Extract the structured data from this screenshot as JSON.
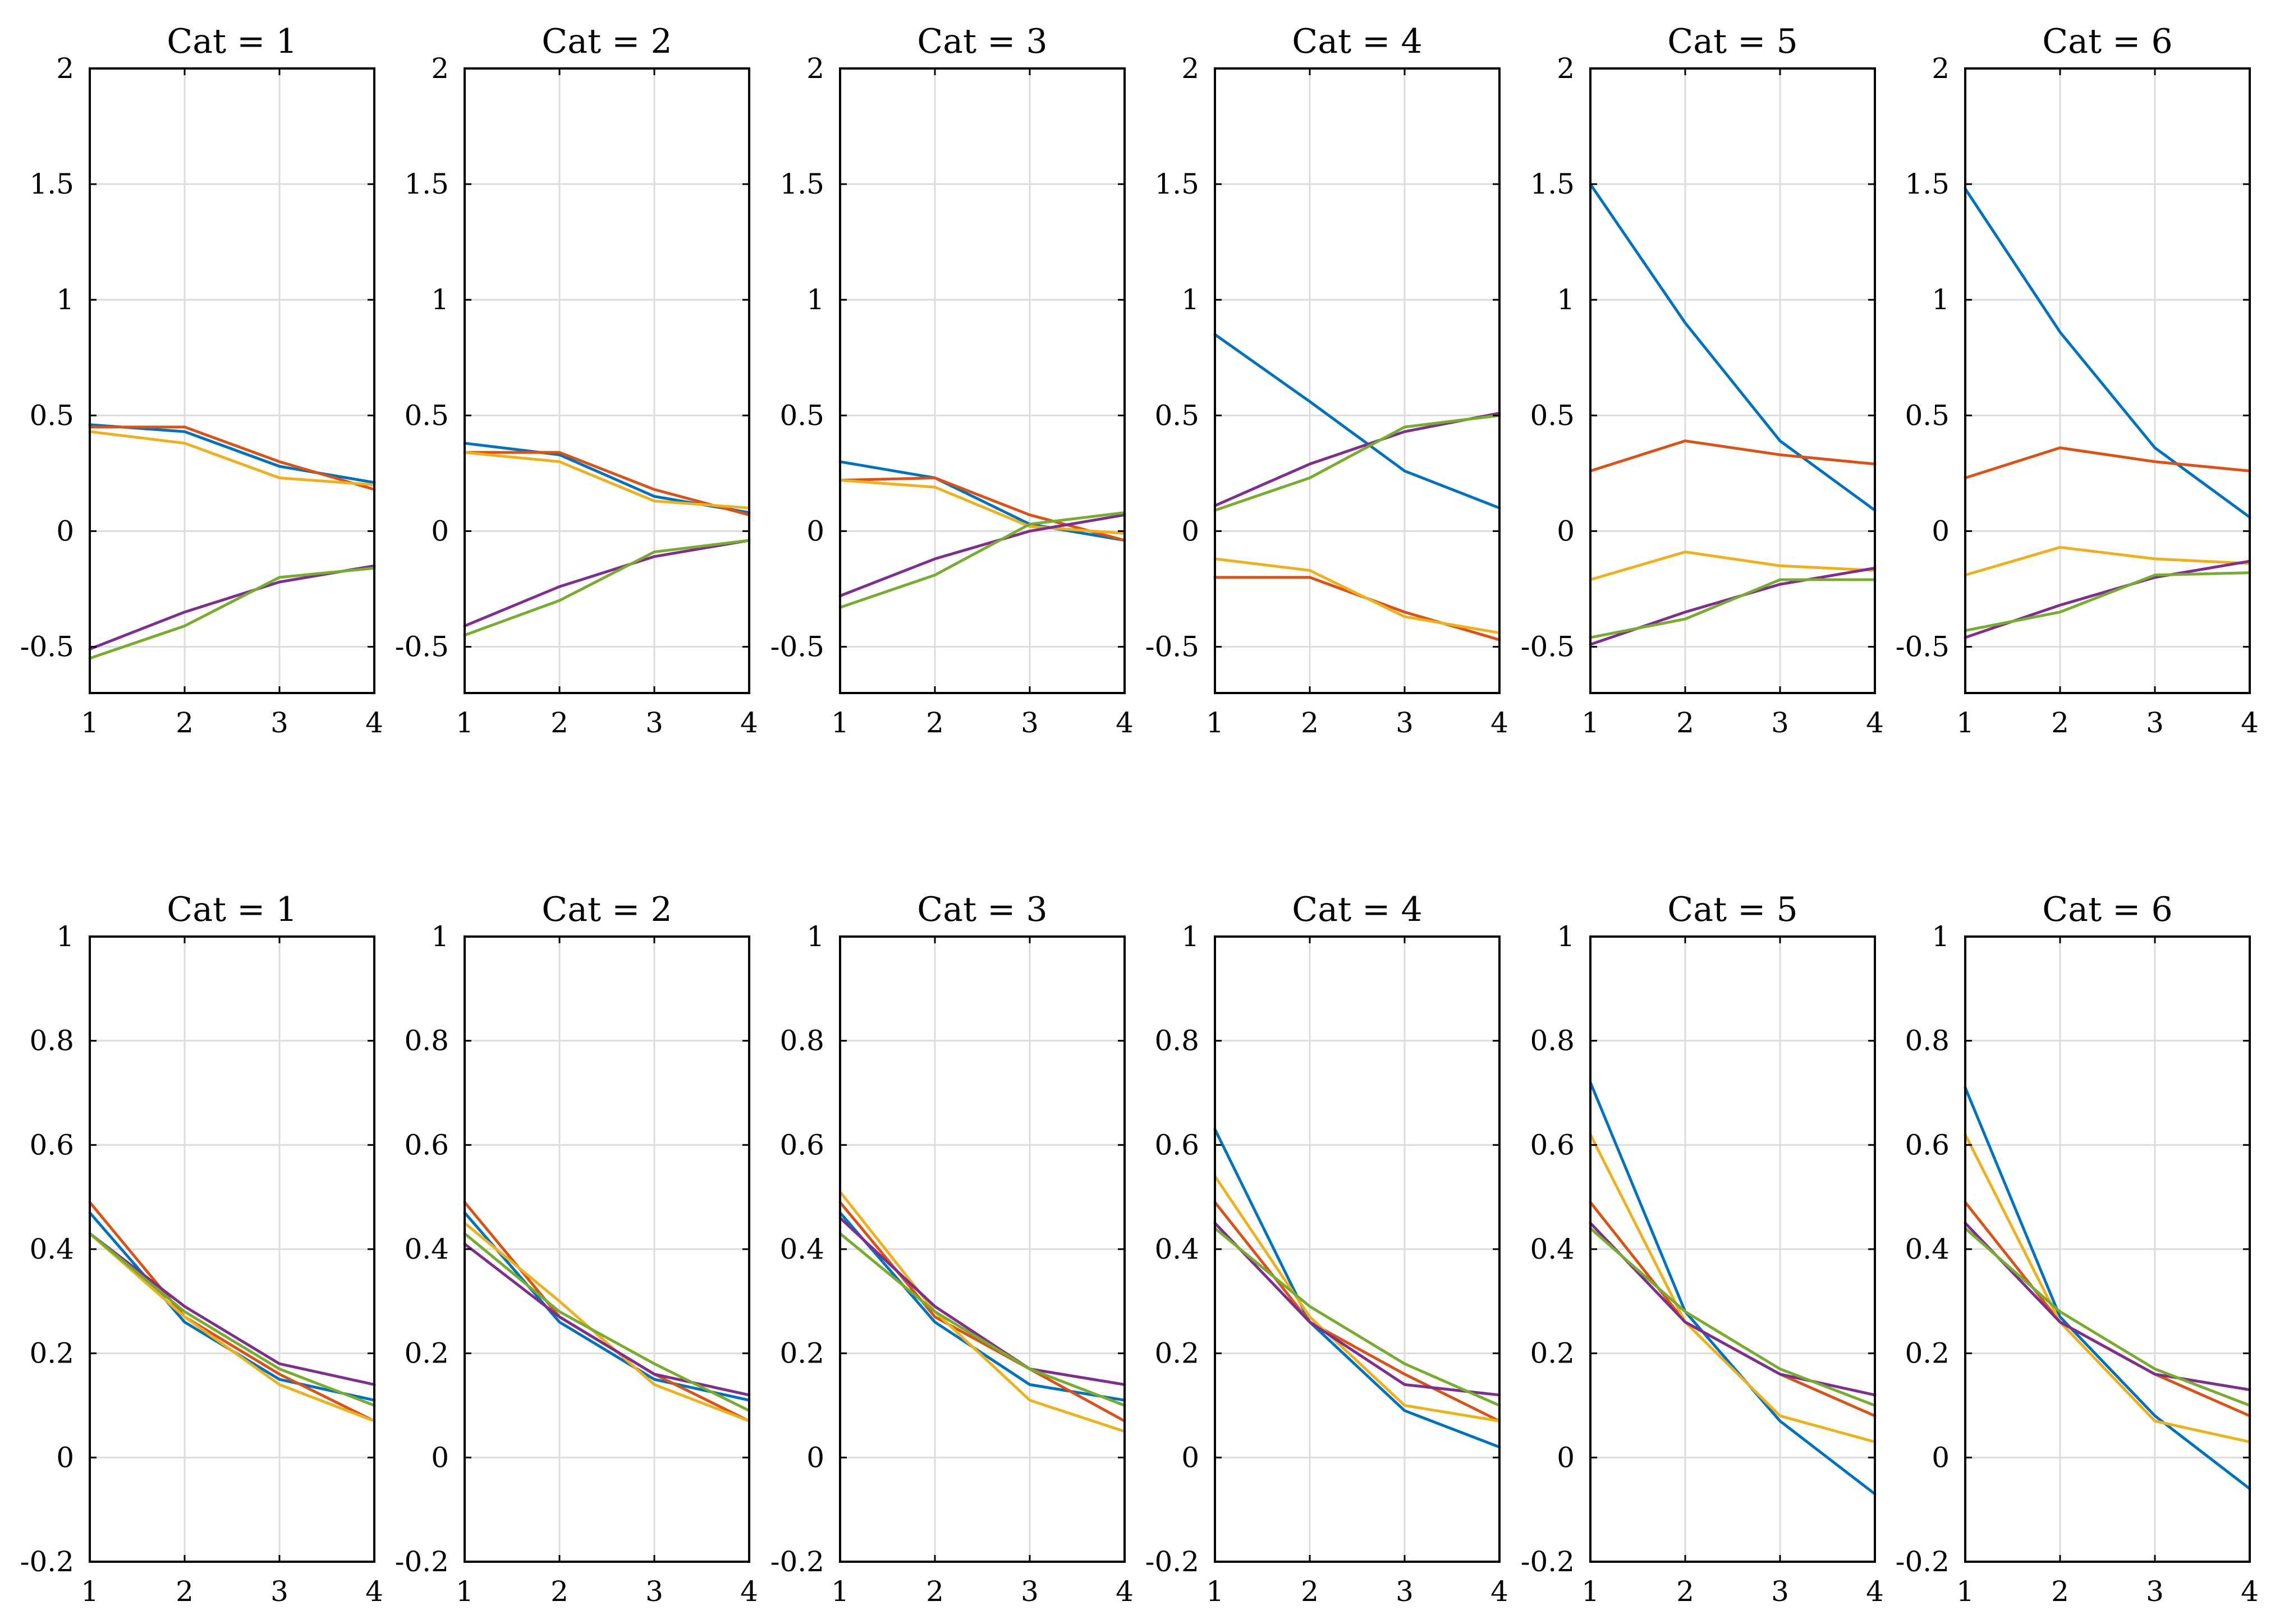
{
  "series_colors": [
    "#0072BD",
    "#D95319",
    "#EDB120",
    "#7E2F8E",
    "#77AC30"
  ],
  "chart_data": [
    {
      "type": "line",
      "title": "Cat = 1",
      "x": [
        1,
        2,
        3,
        4
      ],
      "xlim": [
        1,
        4
      ],
      "ylim": [
        -0.7,
        2
      ],
      "xticks": [
        "1",
        "2",
        "3",
        "4"
      ],
      "yticks": [
        -0.5,
        0,
        0.5,
        1,
        1.5,
        2
      ],
      "ytick_labels": [
        "-0.5",
        "0",
        "0.5",
        "1",
        "1.5",
        "2"
      ],
      "grid": true,
      "series": [
        {
          "values": [
            0.46,
            0.43,
            0.28,
            0.21
          ]
        },
        {
          "values": [
            0.45,
            0.45,
            0.3,
            0.18
          ]
        },
        {
          "values": [
            0.43,
            0.38,
            0.23,
            0.2
          ]
        },
        {
          "values": [
            -0.51,
            -0.35,
            -0.22,
            -0.15
          ]
        },
        {
          "values": [
            -0.55,
            -0.41,
            -0.2,
            -0.16
          ]
        }
      ]
    },
    {
      "type": "line",
      "title": "Cat = 2",
      "x": [
        1,
        2,
        3,
        4
      ],
      "xlim": [
        1,
        4
      ],
      "ylim": [
        -0.7,
        2
      ],
      "xticks": [
        "1",
        "2",
        "3",
        "4"
      ],
      "yticks": [
        -0.5,
        0,
        0.5,
        1,
        1.5,
        2
      ],
      "ytick_labels": [
        "-0.5",
        "0",
        "0.5",
        "1",
        "1.5",
        "2"
      ],
      "grid": true,
      "series": [
        {
          "values": [
            0.38,
            0.33,
            0.15,
            0.08
          ]
        },
        {
          "values": [
            0.34,
            0.34,
            0.18,
            0.07
          ]
        },
        {
          "values": [
            0.34,
            0.3,
            0.13,
            0.1
          ]
        },
        {
          "values": [
            -0.41,
            -0.24,
            -0.11,
            -0.04
          ]
        },
        {
          "values": [
            -0.45,
            -0.3,
            -0.09,
            -0.04
          ]
        }
      ]
    },
    {
      "type": "line",
      "title": "Cat = 3",
      "x": [
        1,
        2,
        3,
        4
      ],
      "xlim": [
        1,
        4
      ],
      "ylim": [
        -0.7,
        2
      ],
      "xticks": [
        "1",
        "2",
        "3",
        "4"
      ],
      "yticks": [
        -0.5,
        0,
        0.5,
        1,
        1.5,
        2
      ],
      "ytick_labels": [
        "-0.5",
        "0",
        "0.5",
        "1",
        "1.5",
        "2"
      ],
      "grid": true,
      "series": [
        {
          "values": [
            0.3,
            0.23,
            0.03,
            -0.04
          ]
        },
        {
          "values": [
            0.22,
            0.23,
            0.07,
            -0.04
          ]
        },
        {
          "values": [
            0.22,
            0.19,
            0.02,
            -0.01
          ]
        },
        {
          "values": [
            -0.28,
            -0.12,
            0.0,
            0.07
          ]
        },
        {
          "values": [
            -0.33,
            -0.19,
            0.03,
            0.08
          ]
        }
      ]
    },
    {
      "type": "line",
      "title": "Cat = 4",
      "x": [
        1,
        2,
        3,
        4
      ],
      "xlim": [
        1,
        4
      ],
      "ylim": [
        -0.7,
        2
      ],
      "xticks": [
        "1",
        "2",
        "3",
        "4"
      ],
      "yticks": [
        -0.5,
        0,
        0.5,
        1,
        1.5,
        2
      ],
      "ytick_labels": [
        "-0.5",
        "0",
        "0.5",
        "1",
        "1.5",
        "2"
      ],
      "grid": true,
      "series": [
        {
          "values": [
            0.85,
            0.56,
            0.26,
            0.1
          ]
        },
        {
          "values": [
            -0.2,
            -0.2,
            -0.35,
            -0.47
          ]
        },
        {
          "values": [
            -0.12,
            -0.17,
            -0.37,
            -0.44
          ]
        },
        {
          "values": [
            0.11,
            0.29,
            0.43,
            0.51
          ]
        },
        {
          "values": [
            0.09,
            0.23,
            0.45,
            0.5
          ]
        }
      ]
    },
    {
      "type": "line",
      "title": "Cat = 5",
      "x": [
        1,
        2,
        3,
        4
      ],
      "xlim": [
        1,
        4
      ],
      "ylim": [
        -0.7,
        2
      ],
      "xticks": [
        "1",
        "2",
        "3",
        "4"
      ],
      "yticks": [
        -0.5,
        0,
        0.5,
        1,
        1.5,
        2
      ],
      "ytick_labels": [
        "-0.5",
        "0",
        "0.5",
        "1",
        "1.5",
        "2"
      ],
      "grid": true,
      "series": [
        {
          "values": [
            1.5,
            0.9,
            0.39,
            0.09
          ]
        },
        {
          "values": [
            0.26,
            0.39,
            0.33,
            0.29
          ]
        },
        {
          "values": [
            -0.21,
            -0.09,
            -0.15,
            -0.17
          ]
        },
        {
          "values": [
            -0.49,
            -0.35,
            -0.23,
            -0.16
          ]
        },
        {
          "values": [
            -0.46,
            -0.38,
            -0.21,
            -0.21
          ]
        }
      ]
    },
    {
      "type": "line",
      "title": "Cat = 6",
      "x": [
        1,
        2,
        3,
        4
      ],
      "xlim": [
        1,
        4
      ],
      "ylim": [
        -0.7,
        2
      ],
      "xticks": [
        "1",
        "2",
        "3",
        "4"
      ],
      "yticks": [
        -0.5,
        0,
        0.5,
        1,
        1.5,
        2
      ],
      "ytick_labels": [
        "-0.5",
        "0",
        "0.5",
        "1",
        "1.5",
        "2"
      ],
      "grid": true,
      "series": [
        {
          "values": [
            1.48,
            0.86,
            0.36,
            0.06
          ]
        },
        {
          "values": [
            0.23,
            0.36,
            0.3,
            0.26
          ]
        },
        {
          "values": [
            -0.19,
            -0.07,
            -0.12,
            -0.14
          ]
        },
        {
          "values": [
            -0.46,
            -0.32,
            -0.2,
            -0.13
          ]
        },
        {
          "values": [
            -0.43,
            -0.35,
            -0.19,
            -0.18
          ]
        }
      ]
    },
    {
      "type": "line",
      "title": "Cat = 1",
      "x": [
        1,
        2,
        3,
        4
      ],
      "xlim": [
        1,
        4
      ],
      "ylim": [
        -0.2,
        1
      ],
      "xticks": [
        "1",
        "2",
        "3",
        "4"
      ],
      "yticks": [
        -0.2,
        0,
        0.2,
        0.4,
        0.6,
        0.8,
        1
      ],
      "ytick_labels": [
        "-0.2",
        "0",
        "0.2",
        "0.4",
        "0.6",
        "0.8",
        "1"
      ],
      "grid": true,
      "series": [
        {
          "values": [
            0.47,
            0.26,
            0.15,
            0.11
          ]
        },
        {
          "values": [
            0.49,
            0.27,
            0.16,
            0.07
          ]
        },
        {
          "values": [
            0.43,
            0.27,
            0.14,
            0.07
          ]
        },
        {
          "values": [
            0.43,
            0.29,
            0.18,
            0.14
          ]
        },
        {
          "values": [
            0.43,
            0.28,
            0.17,
            0.1
          ]
        }
      ]
    },
    {
      "type": "line",
      "title": "Cat = 2",
      "x": [
        1,
        2,
        3,
        4
      ],
      "xlim": [
        1,
        4
      ],
      "ylim": [
        -0.2,
        1
      ],
      "xticks": [
        "1",
        "2",
        "3",
        "4"
      ],
      "yticks": [
        -0.2,
        0,
        0.2,
        0.4,
        0.6,
        0.8,
        1
      ],
      "ytick_labels": [
        "-0.2",
        "0",
        "0.2",
        "0.4",
        "0.6",
        "0.8",
        "1"
      ],
      "grid": true,
      "series": [
        {
          "values": [
            0.47,
            0.26,
            0.15,
            0.11
          ]
        },
        {
          "values": [
            0.49,
            0.27,
            0.16,
            0.07
          ]
        },
        {
          "values": [
            0.45,
            0.3,
            0.14,
            0.07
          ]
        },
        {
          "values": [
            0.41,
            0.27,
            0.16,
            0.12
          ]
        },
        {
          "values": [
            0.43,
            0.28,
            0.18,
            0.09
          ]
        }
      ]
    },
    {
      "type": "line",
      "title": "Cat = 3",
      "x": [
        1,
        2,
        3,
        4
      ],
      "xlim": [
        1,
        4
      ],
      "ylim": [
        -0.2,
        1
      ],
      "xticks": [
        "1",
        "2",
        "3",
        "4"
      ],
      "yticks": [
        -0.2,
        0,
        0.2,
        0.4,
        0.6,
        0.8,
        1
      ],
      "ytick_labels": [
        "-0.2",
        "0",
        "0.2",
        "0.4",
        "0.6",
        "0.8",
        "1"
      ],
      "grid": true,
      "series": [
        {
          "values": [
            0.47,
            0.26,
            0.14,
            0.11
          ]
        },
        {
          "values": [
            0.49,
            0.27,
            0.17,
            0.07
          ]
        },
        {
          "values": [
            0.51,
            0.28,
            0.11,
            0.05
          ]
        },
        {
          "values": [
            0.46,
            0.29,
            0.17,
            0.14
          ]
        },
        {
          "values": [
            0.43,
            0.28,
            0.17,
            0.1
          ]
        }
      ]
    },
    {
      "type": "line",
      "title": "Cat = 4",
      "x": [
        1,
        2,
        3,
        4
      ],
      "xlim": [
        1,
        4
      ],
      "ylim": [
        -0.2,
        1
      ],
      "xticks": [
        "1",
        "2",
        "3",
        "4"
      ],
      "yticks": [
        -0.2,
        0,
        0.2,
        0.4,
        0.6,
        0.8,
        1
      ],
      "ytick_labels": [
        "-0.2",
        "0",
        "0.2",
        "0.4",
        "0.6",
        "0.8",
        "1"
      ],
      "grid": true,
      "series": [
        {
          "values": [
            0.63,
            0.26,
            0.09,
            0.02
          ]
        },
        {
          "values": [
            0.49,
            0.26,
            0.16,
            0.07
          ]
        },
        {
          "values": [
            0.54,
            0.27,
            0.1,
            0.07
          ]
        },
        {
          "values": [
            0.45,
            0.26,
            0.14,
            0.12
          ]
        },
        {
          "values": [
            0.44,
            0.29,
            0.18,
            0.1
          ]
        }
      ]
    },
    {
      "type": "line",
      "title": "Cat = 5",
      "x": [
        1,
        2,
        3,
        4
      ],
      "xlim": [
        1,
        4
      ],
      "ylim": [
        -0.2,
        1
      ],
      "xticks": [
        "1",
        "2",
        "3",
        "4"
      ],
      "yticks": [
        -0.2,
        0,
        0.2,
        0.4,
        0.6,
        0.8,
        1
      ],
      "ytick_labels": [
        "-0.2",
        "0",
        "0.2",
        "0.4",
        "0.6",
        "0.8",
        "1"
      ],
      "grid": true,
      "series": [
        {
          "values": [
            0.72,
            0.28,
            0.07,
            -0.07
          ]
        },
        {
          "values": [
            0.49,
            0.26,
            0.16,
            0.08
          ]
        },
        {
          "values": [
            0.62,
            0.26,
            0.08,
            0.03
          ]
        },
        {
          "values": [
            0.45,
            0.26,
            0.16,
            0.12
          ]
        },
        {
          "values": [
            0.44,
            0.28,
            0.17,
            0.1
          ]
        }
      ]
    },
    {
      "type": "line",
      "title": "Cat = 6",
      "x": [
        1,
        2,
        3,
        4
      ],
      "xlim": [
        1,
        4
      ],
      "ylim": [
        -0.2,
        1
      ],
      "xticks": [
        "1",
        "2",
        "3",
        "4"
      ],
      "yticks": [
        -0.2,
        0,
        0.2,
        0.4,
        0.6,
        0.8,
        1
      ],
      "ytick_labels": [
        "-0.2",
        "0",
        "0.2",
        "0.4",
        "0.6",
        "0.8",
        "1"
      ],
      "grid": true,
      "series": [
        {
          "values": [
            0.71,
            0.27,
            0.08,
            -0.06
          ]
        },
        {
          "values": [
            0.49,
            0.26,
            0.16,
            0.08
          ]
        },
        {
          "values": [
            0.62,
            0.26,
            0.07,
            0.03
          ]
        },
        {
          "values": [
            0.45,
            0.26,
            0.16,
            0.13
          ]
        },
        {
          "values": [
            0.44,
            0.28,
            0.17,
            0.1
          ]
        }
      ]
    }
  ]
}
